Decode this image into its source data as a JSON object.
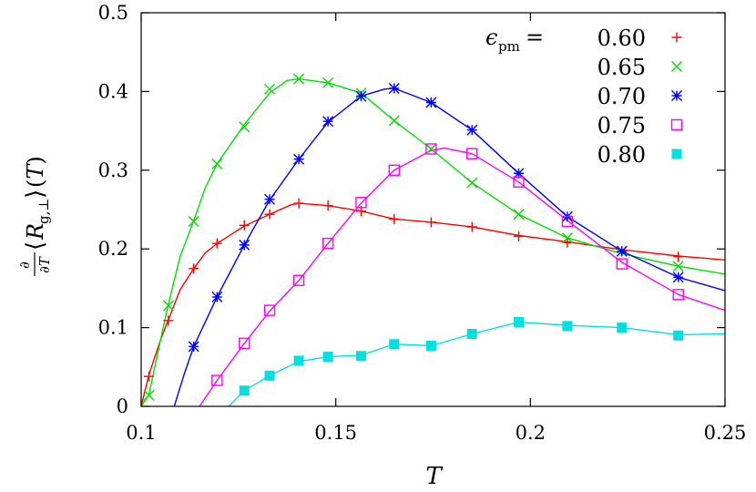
{
  "chart_data": {
    "type": "line",
    "xlabel": "T",
    "ylabel": "∂/∂T ⟨R g,⊥⟩(T)",
    "xlim": [
      0.1,
      0.25
    ],
    "ylim": [
      0,
      0.5
    ],
    "x_ticks": [
      "0.1",
      "0.15",
      "0.2",
      "0.25"
    ],
    "x_tick_values": [
      0.1,
      0.15,
      0.2,
      0.25
    ],
    "y_ticks": [
      "0",
      "0.1",
      "0.2",
      "0.3",
      "0.4",
      "0.5"
    ],
    "y_tick_values": [
      0,
      0.1,
      0.2,
      0.3,
      0.4,
      0.5
    ],
    "grid": false,
    "legend_position": "top-right",
    "legend_title": "ϵpm =",
    "series": [
      {
        "name": "0.60",
        "color": "#ff0000",
        "marker": "plus",
        "points": [
          [
            0.102,
            0.038
          ],
          [
            0.107,
            0.109
          ],
          [
            0.1135,
            0.175
          ],
          [
            0.1195,
            0.207
          ],
          [
            0.1265,
            0.23
          ],
          [
            0.133,
            0.244
          ],
          [
            0.1405,
            0.258
          ],
          [
            0.148,
            0.255
          ],
          [
            0.1565,
            0.248
          ],
          [
            0.165,
            0.238
          ],
          [
            0.1745,
            0.234
          ],
          [
            0.185,
            0.228
          ],
          [
            0.197,
            0.216
          ],
          [
            0.2095,
            0.208
          ],
          [
            0.2235,
            0.197
          ],
          [
            0.238,
            0.19
          ]
        ],
        "curve": [
          [
            0.1,
            0.0
          ],
          [
            0.102,
            0.04
          ],
          [
            0.105,
            0.085
          ],
          [
            0.107,
            0.11
          ],
          [
            0.11,
            0.148
          ],
          [
            0.1135,
            0.175
          ],
          [
            0.1165,
            0.195
          ],
          [
            0.1195,
            0.207
          ],
          [
            0.1265,
            0.229
          ],
          [
            0.133,
            0.244
          ],
          [
            0.1385,
            0.256
          ],
          [
            0.1405,
            0.258
          ],
          [
            0.148,
            0.255
          ],
          [
            0.1565,
            0.248
          ],
          [
            0.165,
            0.238
          ],
          [
            0.1745,
            0.234
          ],
          [
            0.185,
            0.228
          ],
          [
            0.197,
            0.217
          ],
          [
            0.2095,
            0.209
          ],
          [
            0.2235,
            0.199
          ],
          [
            0.238,
            0.191
          ],
          [
            0.25,
            0.186
          ]
        ]
      },
      {
        "name": "0.65",
        "color": "#00e000",
        "marker": "cross",
        "points": [
          [
            0.102,
            0.014
          ],
          [
            0.107,
            0.128
          ],
          [
            0.1135,
            0.235
          ],
          [
            0.1195,
            0.308
          ],
          [
            0.1265,
            0.355
          ],
          [
            0.133,
            0.403
          ],
          [
            0.1405,
            0.416
          ],
          [
            0.148,
            0.411
          ],
          [
            0.1565,
            0.398
          ],
          [
            0.165,
            0.363
          ],
          [
            0.1745,
            0.327
          ],
          [
            0.185,
            0.284
          ],
          [
            0.197,
            0.244
          ],
          [
            0.2095,
            0.214
          ],
          [
            0.2235,
            0.197
          ],
          [
            0.238,
            0.178
          ]
        ],
        "curve": [
          [
            0.1,
            0.0
          ],
          [
            0.102,
            0.015
          ],
          [
            0.105,
            0.085
          ],
          [
            0.107,
            0.13
          ],
          [
            0.11,
            0.19
          ],
          [
            0.1135,
            0.236
          ],
          [
            0.1165,
            0.278
          ],
          [
            0.1195,
            0.308
          ],
          [
            0.1265,
            0.358
          ],
          [
            0.133,
            0.398
          ],
          [
            0.1375,
            0.414
          ],
          [
            0.1405,
            0.416
          ],
          [
            0.148,
            0.411
          ],
          [
            0.1565,
            0.398
          ],
          [
            0.165,
            0.363
          ],
          [
            0.1745,
            0.327
          ],
          [
            0.185,
            0.284
          ],
          [
            0.197,
            0.244
          ],
          [
            0.2095,
            0.214
          ],
          [
            0.2235,
            0.194
          ],
          [
            0.238,
            0.178
          ],
          [
            0.25,
            0.168
          ]
        ]
      },
      {
        "name": "0.70",
        "color": "#0000ff",
        "marker": "star",
        "points": [
          [
            0.1135,
            0.076
          ],
          [
            0.1195,
            0.139
          ],
          [
            0.1265,
            0.205
          ],
          [
            0.133,
            0.263
          ],
          [
            0.1405,
            0.314
          ],
          [
            0.148,
            0.362
          ],
          [
            0.1565,
            0.394
          ],
          [
            0.165,
            0.404
          ],
          [
            0.1745,
            0.386
          ],
          [
            0.185,
            0.351
          ],
          [
            0.197,
            0.296
          ],
          [
            0.2095,
            0.241
          ],
          [
            0.2235,
            0.197
          ],
          [
            0.238,
            0.164
          ]
        ],
        "curve": [
          [
            0.1085,
            0.0
          ],
          [
            0.111,
            0.04
          ],
          [
            0.1135,
            0.076
          ],
          [
            0.1195,
            0.139
          ],
          [
            0.1265,
            0.205
          ],
          [
            0.133,
            0.262
          ],
          [
            0.1405,
            0.314
          ],
          [
            0.148,
            0.361
          ],
          [
            0.1565,
            0.394
          ],
          [
            0.1625,
            0.403
          ],
          [
            0.165,
            0.404
          ],
          [
            0.1745,
            0.386
          ],
          [
            0.185,
            0.351
          ],
          [
            0.197,
            0.296
          ],
          [
            0.2095,
            0.241
          ],
          [
            0.2235,
            0.197
          ],
          [
            0.238,
            0.164
          ],
          [
            0.25,
            0.147
          ]
        ]
      },
      {
        "name": "0.75",
        "color": "#ff00ff",
        "marker": "open-square",
        "points": [
          [
            0.1195,
            0.033
          ],
          [
            0.1265,
            0.08
          ],
          [
            0.133,
            0.122
          ],
          [
            0.1405,
            0.16
          ],
          [
            0.148,
            0.207
          ],
          [
            0.1565,
            0.259
          ],
          [
            0.165,
            0.3
          ],
          [
            0.1745,
            0.327
          ],
          [
            0.185,
            0.321
          ],
          [
            0.197,
            0.285
          ],
          [
            0.2095,
            0.235
          ],
          [
            0.2235,
            0.181
          ],
          [
            0.238,
            0.142
          ]
        ],
        "curve": [
          [
            0.115,
            0.0
          ],
          [
            0.1195,
            0.033
          ],
          [
            0.1265,
            0.08
          ],
          [
            0.133,
            0.121
          ],
          [
            0.1405,
            0.16
          ],
          [
            0.148,
            0.207
          ],
          [
            0.1565,
            0.258
          ],
          [
            0.165,
            0.3
          ],
          [
            0.1745,
            0.325
          ],
          [
            0.178,
            0.328
          ],
          [
            0.185,
            0.321
          ],
          [
            0.197,
            0.285
          ],
          [
            0.2095,
            0.236
          ],
          [
            0.2235,
            0.183
          ],
          [
            0.238,
            0.142
          ],
          [
            0.25,
            0.122
          ]
        ]
      },
      {
        "name": "0.80",
        "color": "#00e0e0",
        "marker": "filled-square",
        "points": [
          [
            0.1265,
            0.02
          ],
          [
            0.133,
            0.039
          ],
          [
            0.1405,
            0.058
          ],
          [
            0.148,
            0.063
          ],
          [
            0.1565,
            0.064
          ],
          [
            0.165,
            0.079
          ],
          [
            0.1745,
            0.077
          ],
          [
            0.185,
            0.092
          ],
          [
            0.197,
            0.107
          ],
          [
            0.2095,
            0.102
          ],
          [
            0.2235,
            0.1
          ],
          [
            0.238,
            0.09
          ]
        ],
        "curve": [
          [
            0.1225,
            0.0
          ],
          [
            0.1265,
            0.02
          ],
          [
            0.133,
            0.039
          ],
          [
            0.1405,
            0.057
          ],
          [
            0.148,
            0.063
          ],
          [
            0.1565,
            0.065
          ],
          [
            0.165,
            0.079
          ],
          [
            0.1745,
            0.077
          ],
          [
            0.185,
            0.092
          ],
          [
            0.197,
            0.107
          ],
          [
            0.2095,
            0.103
          ],
          [
            0.2235,
            0.1
          ],
          [
            0.238,
            0.091
          ],
          [
            0.25,
            0.092
          ]
        ]
      }
    ]
  }
}
